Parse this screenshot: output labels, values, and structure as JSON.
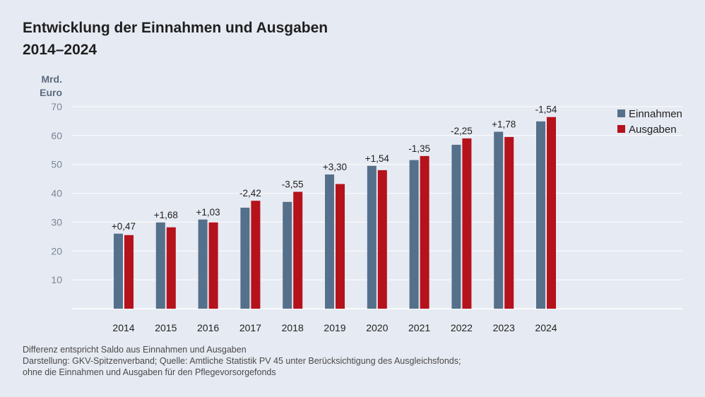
{
  "title_line1": "Entwicklung der Einnahmen und Ausgaben",
  "title_line2": "2014–2024",
  "unit_line1": "Mrd.",
  "unit_line2": "Euro",
  "footer": [
    "Differenz entspricht Saldo aus Einnahmen und Ausgaben",
    "Darstellung: GKV-Spitzenverband; Quelle: Amtliche Statistik PV 45 unter Berücksichtigung des Ausgleichsfonds;",
    "ohne die Einnahmen und Ausgaben für den Pflegevorsorgefonds"
  ],
  "colors": {
    "einnahmen": "#55708a",
    "ausgaben": "#b5121b"
  },
  "chart_data": {
    "type": "bar",
    "title": "Entwicklung der Einnahmen und Ausgaben 2014–2024",
    "xlabel": "",
    "ylabel": "Mrd. Euro",
    "ylim": [
      0,
      70
    ],
    "yticks": [
      10,
      20,
      30,
      40,
      50,
      60,
      70
    ],
    "grid": true,
    "legend_position": "top-right",
    "categories": [
      "2014",
      "2015",
      "2016",
      "2017",
      "2018",
      "2019",
      "2020",
      "2021",
      "2022",
      "2023",
      "2024"
    ],
    "series": [
      {
        "name": "Einnahmen",
        "values": [
          26.0,
          29.9,
          30.9,
          35.0,
          37.0,
          46.5,
          49.5,
          51.5,
          56.8,
          61.3,
          64.9
        ]
      },
      {
        "name": "Ausgaben",
        "values": [
          25.5,
          28.2,
          29.9,
          37.4,
          40.5,
          43.2,
          48.0,
          52.9,
          59.0,
          59.5,
          66.4
        ]
      }
    ],
    "data_labels": [
      "+0,47",
      "+1,68",
      "+1,03",
      "-2,42",
      "-3,55",
      "+3,30",
      "+1,54",
      "-1,35",
      "-2,25",
      "+1,78",
      "-1,54"
    ]
  }
}
